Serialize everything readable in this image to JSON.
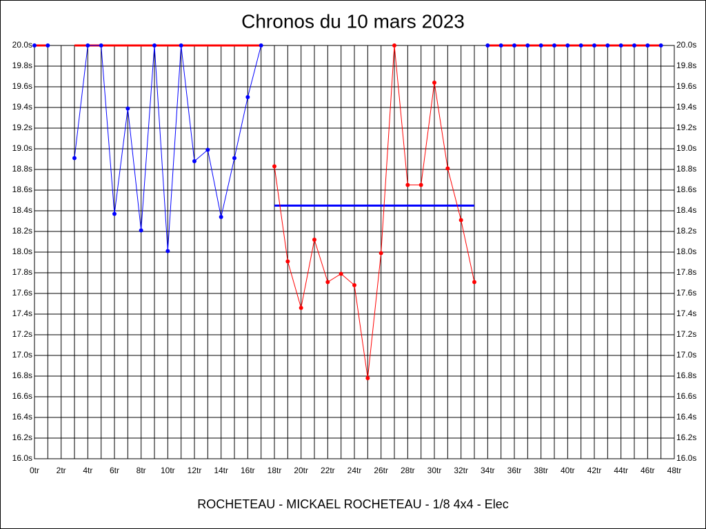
{
  "chart_data": {
    "type": "line",
    "title": "Chronos du 10 mars 2023",
    "x_label": "ROCHETEAU - MICKAEL ROCHETEAU - 1/8 4x4 - Elec",
    "xlim": [
      0,
      48
    ],
    "xticks": [
      {
        "value": 0,
        "label": "0tr"
      },
      {
        "value": 2,
        "label": "2tr"
      },
      {
        "value": 4,
        "label": "4tr"
      },
      {
        "value": 6,
        "label": "6tr"
      },
      {
        "value": 8,
        "label": "8tr"
      },
      {
        "value": 10,
        "label": "10tr"
      },
      {
        "value": 12,
        "label": "12tr"
      },
      {
        "value": 14,
        "label": "14tr"
      },
      {
        "value": 16,
        "label": "16tr"
      },
      {
        "value": 18,
        "label": "18tr"
      },
      {
        "value": 20,
        "label": "20tr"
      },
      {
        "value": 22,
        "label": "22tr"
      },
      {
        "value": 24,
        "label": "24tr"
      },
      {
        "value": 26,
        "label": "26tr"
      },
      {
        "value": 28,
        "label": "28tr"
      },
      {
        "value": 30,
        "label": "30tr"
      },
      {
        "value": 32,
        "label": "32tr"
      },
      {
        "value": 34,
        "label": "34tr"
      },
      {
        "value": 36,
        "label": "36tr"
      },
      {
        "value": 38,
        "label": "38tr"
      },
      {
        "value": 40,
        "label": "40tr"
      },
      {
        "value": 42,
        "label": "42tr"
      },
      {
        "value": 44,
        "label": "44tr"
      },
      {
        "value": 46,
        "label": "46tr"
      },
      {
        "value": 48,
        "label": "48tr"
      }
    ],
    "xminor_ticks": [
      1,
      3,
      5,
      7,
      9,
      11,
      13,
      15,
      17,
      19,
      21,
      23,
      25,
      27,
      29,
      31,
      33,
      35,
      37,
      39,
      41,
      43,
      45,
      47
    ],
    "ylim": [
      16.0,
      20.0
    ],
    "yticks": [
      {
        "value": 16.0,
        "label": "16.0s"
      },
      {
        "value": 16.2,
        "label": "16.2s"
      },
      {
        "value": 16.4,
        "label": "16.4s"
      },
      {
        "value": 16.6,
        "label": "16.6s"
      },
      {
        "value": 16.8,
        "label": "16.8s"
      },
      {
        "value": 17.0,
        "label": "17.0s"
      },
      {
        "value": 17.2,
        "label": "17.2s"
      },
      {
        "value": 17.4,
        "label": "17.4s"
      },
      {
        "value": 17.6,
        "label": "17.6s"
      },
      {
        "value": 17.8,
        "label": "17.8s"
      },
      {
        "value": 18.0,
        "label": "18.0s"
      },
      {
        "value": 18.2,
        "label": "18.2s"
      },
      {
        "value": 18.4,
        "label": "18.4s"
      },
      {
        "value": 18.6,
        "label": "18.6s"
      },
      {
        "value": 18.8,
        "label": "18.8s"
      },
      {
        "value": 19.0,
        "label": "19.0s"
      },
      {
        "value": 19.2,
        "label": "19.2s"
      },
      {
        "value": 19.4,
        "label": "19.4s"
      },
      {
        "value": 19.6,
        "label": "19.6s"
      },
      {
        "value": 19.8,
        "label": "19.8s"
      },
      {
        "value": 20.0,
        "label": "20.0s"
      }
    ],
    "grid": true,
    "series": [
      {
        "color": "#ff0000",
        "marker_color": "#0000ff",
        "line_width": 3,
        "markers": true,
        "x": [
          0,
          1
        ],
        "values": [
          20.0,
          20.0
        ]
      },
      {
        "color": "#ff0000",
        "line_width": 3,
        "markers": false,
        "x": [
          3,
          17
        ],
        "values": [
          20.0,
          20.0
        ]
      },
      {
        "color": "#0000ff",
        "marker_color": "#0000ff",
        "line_width": 1,
        "markers": true,
        "x": [
          3,
          4,
          5,
          6,
          7,
          8,
          9,
          10,
          11,
          12,
          13,
          14,
          15,
          16,
          17
        ],
        "values": [
          18.91,
          20.0,
          20.0,
          18.37,
          19.39,
          18.21,
          20.0,
          18.01,
          20.0,
          18.88,
          18.99,
          18.34,
          18.91,
          19.5,
          20.0
        ]
      },
      {
        "color": "#0000ff",
        "line_width": 3,
        "markers": false,
        "x": [
          18,
          33
        ],
        "values": [
          18.45,
          18.45
        ]
      },
      {
        "color": "#ff0000",
        "marker_color": "#ff0000",
        "line_width": 1,
        "markers": true,
        "x": [
          18,
          19,
          20,
          21,
          22,
          23,
          24,
          25,
          26,
          27,
          28,
          29,
          30,
          31,
          32,
          33
        ],
        "values": [
          18.83,
          17.91,
          17.46,
          18.12,
          17.71,
          17.79,
          17.68,
          16.78,
          17.99,
          20.0,
          18.65,
          18.65,
          19.64,
          18.81,
          18.31,
          17.71
        ]
      },
      {
        "color": "#ff0000",
        "marker_color": "#0000ff",
        "line_width": 3,
        "markers": true,
        "x": [
          34,
          35,
          36,
          37,
          38,
          39,
          40,
          41,
          42,
          43,
          44,
          45,
          46,
          47
        ],
        "values": [
          20.0,
          20.0,
          20.0,
          20.0,
          20.0,
          20.0,
          20.0,
          20.0,
          20.0,
          20.0,
          20.0,
          20.0,
          20.0,
          20.0
        ]
      }
    ]
  }
}
